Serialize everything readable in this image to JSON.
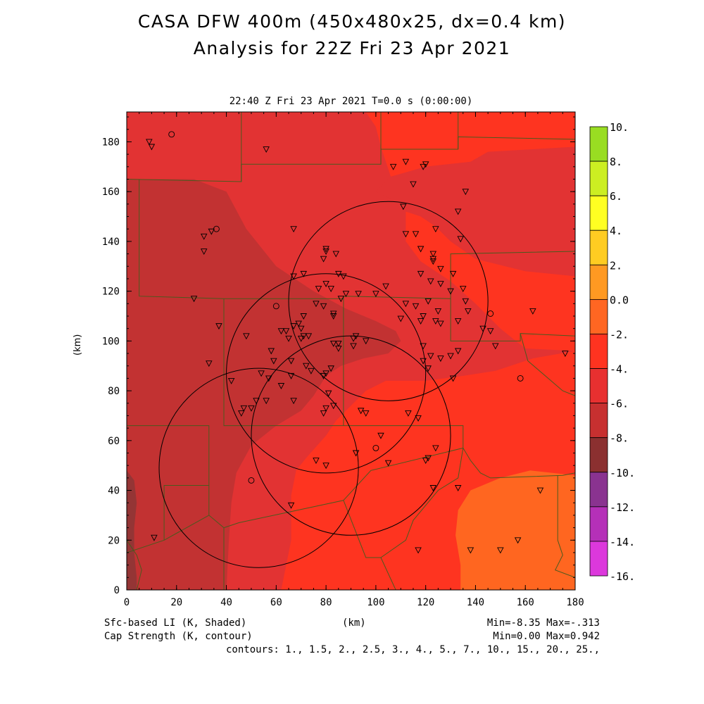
{
  "titles": {
    "line1": "CASA DFW 400m (450x480x25, dx=0.4 km)",
    "line2": "Analysis for 22Z Fri 23 Apr 2021",
    "time": "22:40 Z Fri 23 Apr 2021   T=0.0 s (0:00:00)"
  },
  "footer": {
    "shaded": "Sfc-based LI (K, Shaded)",
    "contour": "Cap Strength (K, contour)",
    "xunit": "(km)",
    "minmax_shaded": "Min=-8.35 Max=-.313",
    "minmax_contour": "Min=0.00 Max=0.942",
    "contours": "contours: 1., 1.5, 2., 2.5, 3., 4., 5., 7., 10., 15., 20., 25.,"
  },
  "chart_data": {
    "type": "heatmap",
    "title": "CASA DFW 400m (450x480x25, dx=0.4 km)",
    "subtitle": "Analysis for 22Z Fri 23 Apr 2021",
    "xlabel": "(km)",
    "ylabel": "(km)",
    "xlim": [
      0,
      180
    ],
    "ylim": [
      0,
      192
    ],
    "xticks": [
      0,
      20,
      40,
      60,
      80,
      100,
      120,
      140,
      160,
      180
    ],
    "yticks": [
      0,
      20,
      40,
      60,
      80,
      100,
      120,
      140,
      160,
      180
    ],
    "colorbar": {
      "labels": [
        "10.",
        "8.",
        "6.",
        "4.",
        "2.",
        "0.0",
        "-2.",
        "-4.",
        "-6.",
        "-8.",
        "-10.",
        "-12.",
        "-14.",
        "-16."
      ],
      "colors": [
        "#99dd22",
        "#ccee22",
        "#ffff22",
        "#ffcc22",
        "#ff9922",
        "#ff6622",
        "#ff3320",
        "#e83030",
        "#c73030",
        "#8b3030",
        "#8a3390",
        "#b530b8",
        "#dc38dc"
      ]
    },
    "shaded_regions": [
      {
        "level": "-6 to -8",
        "color": "#c23232",
        "polygon": [
          [
            0,
            165
          ],
          [
            27,
            165
          ],
          [
            40,
            160
          ],
          [
            48,
            145
          ],
          [
            60,
            130
          ],
          [
            75,
            120
          ],
          [
            88,
            113
          ],
          [
            100,
            108
          ],
          [
            108,
            104
          ],
          [
            110,
            100
          ],
          [
            105,
            95
          ],
          [
            95,
            93
          ],
          [
            86,
            90
          ],
          [
            80,
            86
          ],
          [
            75,
            78
          ],
          [
            70,
            72
          ],
          [
            60,
            66
          ],
          [
            50,
            58
          ],
          [
            44,
            47
          ],
          [
            42,
            35
          ],
          [
            41,
            20
          ],
          [
            40,
            0
          ],
          [
            0,
            0
          ]
        ]
      },
      {
        "level": "-4 to -6",
        "color": "#e23333",
        "polygon": [
          [
            0,
            192
          ],
          [
            180,
            192
          ],
          [
            180,
            178
          ],
          [
            145,
            176
          ],
          [
            138,
            172
          ],
          [
            120,
            170
          ],
          [
            106,
            166
          ],
          [
            100,
            160
          ],
          [
            110,
            155
          ],
          [
            118,
            150
          ],
          [
            124,
            146
          ],
          [
            130,
            140
          ],
          [
            140,
            133
          ],
          [
            160,
            128
          ],
          [
            180,
            126
          ],
          [
            180,
            96
          ],
          [
            163,
            93
          ],
          [
            148,
            88
          ],
          [
            135,
            86
          ],
          [
            120,
            84
          ],
          [
            104,
            84
          ],
          [
            96,
            80
          ],
          [
            90,
            74
          ],
          [
            84,
            68
          ],
          [
            80,
            62
          ],
          [
            72,
            53
          ],
          [
            68,
            48
          ],
          [
            66,
            38
          ],
          [
            66,
            20
          ],
          [
            62,
            0
          ],
          [
            0,
            0
          ]
        ]
      },
      {
        "level": "-2 to -4",
        "color": "#fe3420",
        "polygon": [
          [
            96,
            192
          ],
          [
            180,
            192
          ],
          [
            180,
            178
          ],
          [
            145,
            176
          ],
          [
            138,
            172
          ],
          [
            120,
            170
          ],
          [
            106,
            166
          ],
          [
            102,
            178
          ],
          [
            100,
            186
          ]
        ]
      },
      {
        "level": "-2 to -4",
        "color": "#fe3420",
        "polygon": [
          [
            180,
            126
          ],
          [
            160,
            128
          ],
          [
            140,
            133
          ],
          [
            130,
            140
          ],
          [
            124,
            146
          ],
          [
            118,
            150
          ],
          [
            112,
            152
          ],
          [
            112,
            140
          ],
          [
            118,
            132
          ],
          [
            130,
            124
          ],
          [
            140,
            115
          ],
          [
            150,
            105
          ],
          [
            160,
            97
          ],
          [
            180,
            96
          ]
        ]
      },
      {
        "level": "-2 to -4",
        "color": "#fe3420",
        "polygon": [
          [
            180,
            96
          ],
          [
            163,
            93
          ],
          [
            148,
            88
          ],
          [
            135,
            86
          ],
          [
            120,
            84
          ],
          [
            104,
            84
          ],
          [
            96,
            80
          ],
          [
            90,
            74
          ],
          [
            84,
            68
          ],
          [
            80,
            62
          ],
          [
            72,
            53
          ],
          [
            68,
            48
          ],
          [
            66,
            38
          ],
          [
            66,
            20
          ],
          [
            62,
            0
          ],
          [
            180,
            0
          ]
        ]
      },
      {
        "level": "0 to -2",
        "color": "#ff6620",
        "polygon": [
          [
            180,
            46
          ],
          [
            162,
            48
          ],
          [
            150,
            45
          ],
          [
            138,
            40
          ],
          [
            133,
            32
          ],
          [
            132,
            22
          ],
          [
            134,
            10
          ],
          [
            134,
            0
          ],
          [
            180,
            0
          ]
        ]
      },
      {
        "level": "-8 to -10",
        "color": "#943535",
        "polygon": [
          [
            0,
            48
          ],
          [
            3,
            44
          ],
          [
            4,
            35
          ],
          [
            3,
            25
          ],
          [
            3,
            15
          ],
          [
            4,
            5
          ],
          [
            4,
            0
          ],
          [
            0,
            0
          ]
        ]
      }
    ],
    "range_rings": [
      {
        "center": [
          53,
          49
        ],
        "radius": 40
      },
      {
        "center": [
          80,
          87
        ],
        "radius": 40
      },
      {
        "center": [
          105,
          116
        ],
        "radius": 40
      },
      {
        "center": [
          90,
          62
        ],
        "radius": 40
      }
    ],
    "county_lines": [
      [
        [
          0,
          165
        ],
        [
          46,
          164
        ],
        [
          46,
          171
        ],
        [
          102,
          171
        ],
        [
          102,
          177
        ],
        [
          133,
          177
        ],
        [
          133,
          182
        ],
        [
          180,
          181
        ]
      ],
      [
        [
          46,
          164
        ],
        [
          46,
          192
        ]
      ],
      [
        [
          102,
          171
        ],
        [
          102,
          192
        ]
      ],
      [
        [
          133,
          177
        ],
        [
          133,
          192
        ]
      ],
      [
        [
          5,
          165
        ],
        [
          5,
          118
        ],
        [
          39,
          117
        ],
        [
          87,
          117
        ],
        [
          87,
          118
        ],
        [
          130,
          117
        ],
        [
          130,
          100
        ],
        [
          158,
          100
        ],
        [
          158,
          103
        ],
        [
          180,
          102
        ]
      ],
      [
        [
          39,
          117
        ],
        [
          39,
          66
        ],
        [
          87,
          66
        ],
        [
          135,
          66
        ],
        [
          135,
          57
        ],
        [
          138,
          52
        ],
        [
          142,
          47
        ],
        [
          146,
          45
        ],
        [
          175,
          46
        ],
        [
          180,
          47
        ]
      ],
      [
        [
          87,
          117
        ],
        [
          87,
          66
        ]
      ],
      [
        [
          130,
          117
        ],
        [
          130,
          135
        ],
        [
          180,
          136
        ]
      ],
      [
        [
          0,
          66
        ],
        [
          33,
          66
        ],
        [
          33,
          42
        ],
        [
          15,
          42
        ],
        [
          15,
          20
        ],
        [
          0,
          15
        ]
      ],
      [
        [
          33,
          42
        ],
        [
          33,
          30
        ],
        [
          15,
          20
        ]
      ],
      [
        [
          33,
          30
        ],
        [
          39,
          25
        ],
        [
          39,
          0
        ]
      ],
      [
        [
          39,
          25
        ],
        [
          45,
          27
        ],
        [
          87,
          36
        ],
        [
          96,
          13
        ],
        [
          102,
          13
        ],
        [
          108,
          0
        ]
      ],
      [
        [
          87,
          36
        ],
        [
          98,
          48
        ],
        [
          135,
          57
        ]
      ],
      [
        [
          135,
          57
        ],
        [
          133,
          45
        ],
        [
          125,
          40
        ],
        [
          115,
          28
        ],
        [
          112,
          20
        ],
        [
          102,
          13
        ]
      ],
      [
        [
          173,
          46
        ],
        [
          173,
          20
        ],
        [
          175,
          14
        ],
        [
          172,
          8
        ],
        [
          180,
          5
        ]
      ],
      [
        [
          158,
          103
        ],
        [
          161,
          92
        ],
        [
          175,
          80
        ],
        [
          180,
          78
        ]
      ],
      [
        [
          0,
          20
        ],
        [
          4,
          14
        ],
        [
          6,
          8
        ],
        [
          4,
          0
        ]
      ]
    ],
    "stations_triangle": [
      [
        9,
        180
      ],
      [
        10,
        178
      ],
      [
        107,
        170
      ],
      [
        119,
        170
      ],
      [
        120,
        171
      ],
      [
        112,
        172
      ],
      [
        115,
        163
      ],
      [
        136,
        160
      ],
      [
        133,
        152
      ],
      [
        31,
        142
      ],
      [
        34,
        144
      ],
      [
        31,
        136
      ],
      [
        67,
        145
      ],
      [
        111,
        154
      ],
      [
        116,
        143
      ],
      [
        124,
        145
      ],
      [
        112,
        143
      ],
      [
        118,
        137
      ],
      [
        123,
        135
      ],
      [
        123,
        133
      ],
      [
        134,
        141
      ],
      [
        118,
        127
      ],
      [
        123,
        132
      ],
      [
        126,
        129
      ],
      [
        131,
        127
      ],
      [
        126,
        123
      ],
      [
        130,
        120
      ],
      [
        135,
        121
      ],
      [
        136,
        116
      ],
      [
        67,
        126
      ],
      [
        71,
        127
      ],
      [
        77,
        121
      ],
      [
        80,
        123
      ],
      [
        82,
        121
      ],
      [
        85,
        127
      ],
      [
        79,
        133
      ],
      [
        80,
        137
      ],
      [
        80,
        136
      ],
      [
        84,
        135
      ],
      [
        87,
        126
      ],
      [
        76,
        115
      ],
      [
        79,
        114
      ],
      [
        83,
        111
      ],
      [
        86,
        117
      ],
      [
        88,
        119
      ],
      [
        83,
        110
      ],
      [
        93,
        119
      ],
      [
        100,
        119
      ],
      [
        104,
        122
      ],
      [
        112,
        115
      ],
      [
        116,
        114
      ],
      [
        121,
        116
      ],
      [
        122,
        124
      ],
      [
        110,
        109
      ],
      [
        118,
        108
      ],
      [
        124,
        108
      ],
      [
        125,
        112
      ],
      [
        126,
        107
      ],
      [
        133,
        108
      ],
      [
        137,
        112
      ],
      [
        143,
        105
      ],
      [
        146,
        104
      ],
      [
        148,
        98
      ],
      [
        163,
        112
      ],
      [
        176,
        95
      ],
      [
        119,
        110
      ],
      [
        133,
        96
      ],
      [
        130,
        94
      ],
      [
        126,
        93
      ],
      [
        119,
        98
      ],
      [
        119,
        92
      ],
      [
        122,
        94
      ],
      [
        131,
        85
      ],
      [
        121,
        89
      ],
      [
        96,
        100
      ],
      [
        91,
        101
      ],
      [
        91,
        98
      ],
      [
        92,
        102
      ],
      [
        85,
        99
      ],
      [
        83,
        99
      ],
      [
        85,
        97
      ],
      [
        82,
        89
      ],
      [
        80,
        87
      ],
      [
        79,
        86
      ],
      [
        74,
        88
      ],
      [
        81,
        79
      ],
      [
        83,
        74
      ],
      [
        79,
        71
      ],
      [
        80,
        73
      ],
      [
        62,
        104
      ],
      [
        64,
        104
      ],
      [
        65,
        101
      ],
      [
        67,
        106
      ],
      [
        69,
        107
      ],
      [
        70,
        105
      ],
      [
        70,
        101
      ],
      [
        71,
        102
      ],
      [
        73,
        102
      ],
      [
        71,
        110
      ],
      [
        72,
        90
      ],
      [
        66,
        92
      ],
      [
        66,
        86
      ],
      [
        67,
        76
      ],
      [
        58,
        96
      ],
      [
        59,
        92
      ],
      [
        54,
        87
      ],
      [
        57,
        85
      ],
      [
        62,
        82
      ],
      [
        48,
        102
      ],
      [
        37,
        106
      ],
      [
        27,
        117
      ],
      [
        33,
        91
      ],
      [
        42,
        84
      ],
      [
        46,
        71
      ],
      [
        47,
        73
      ],
      [
        50,
        73
      ],
      [
        52,
        76
      ],
      [
        56,
        76
      ],
      [
        94,
        72
      ],
      [
        96,
        71
      ],
      [
        102,
        62
      ],
      [
        113,
        71
      ],
      [
        117,
        69
      ],
      [
        120,
        52
      ],
      [
        121,
        53
      ],
      [
        133,
        41
      ],
      [
        123,
        41
      ],
      [
        117,
        16
      ],
      [
        138,
        16
      ],
      [
        157,
        20
      ],
      [
        166,
        40
      ],
      [
        150,
        16
      ],
      [
        124,
        57
      ],
      [
        92,
        55
      ],
      [
        105,
        51
      ],
      [
        76,
        52
      ],
      [
        66,
        34
      ],
      [
        80,
        50
      ],
      [
        11,
        21
      ],
      [
        56,
        177
      ]
    ],
    "stations_circle": [
      [
        18,
        183
      ],
      [
        36,
        145
      ],
      [
        60,
        114
      ],
      [
        146,
        111
      ],
      [
        158,
        85
      ],
      [
        100,
        57
      ],
      [
        50,
        44
      ]
    ]
  }
}
